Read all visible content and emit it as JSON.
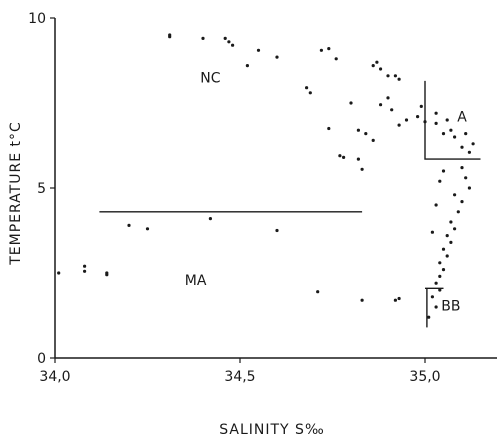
{
  "chart_data": {
    "type": "scatter",
    "xlabel": "SALINITY S‰",
    "ylabel": "TEMPERATURE t°C",
    "xlim": [
      34.0,
      35.15
    ],
    "ylim": [
      0,
      10
    ],
    "xticks": [
      {
        "value": 34.0,
        "label": "34,0"
      },
      {
        "value": 34.5,
        "label": "34,5"
      },
      {
        "value": 35.0,
        "label": "35,0"
      }
    ],
    "yticks": [
      {
        "value": 0,
        "label": "0"
      },
      {
        "value": 5,
        "label": "5"
      },
      {
        "value": 10,
        "label": "10"
      }
    ],
    "grid": false,
    "regions": [
      {
        "label": "NC",
        "x": 34.42,
        "y": 8.1
      },
      {
        "label": "MA",
        "x": 34.38,
        "y": 2.15
      },
      {
        "label": "A",
        "x": 35.1,
        "y": 6.95
      },
      {
        "label": "BB",
        "x": 35.07,
        "y": 1.4
      }
    ],
    "annotation_lines": [
      {
        "points": [
          [
            34.12,
            4.3
          ],
          [
            34.83,
            4.3
          ]
        ]
      },
      {
        "points": [
          [
            35.0,
            8.15
          ],
          [
            35.0,
            5.85
          ],
          [
            35.15,
            5.85
          ]
        ]
      },
      {
        "points": [
          [
            35.0,
            2.05
          ],
          [
            35.05,
            2.05
          ]
        ]
      },
      {
        "points": [
          [
            35.005,
            2.05
          ],
          [
            35.005,
            0.9
          ]
        ]
      }
    ],
    "points": [
      [
        34.01,
        2.5
      ],
      [
        34.08,
        2.55
      ],
      [
        34.08,
        2.7
      ],
      [
        34.14,
        2.5
      ],
      [
        34.14,
        2.45
      ],
      [
        34.2,
        3.9
      ],
      [
        34.25,
        3.8
      ],
      [
        34.42,
        4.1
      ],
      [
        34.6,
        3.75
      ],
      [
        34.31,
        9.5
      ],
      [
        34.31,
        9.45
      ],
      [
        34.4,
        9.4
      ],
      [
        34.46,
        9.4
      ],
      [
        34.47,
        9.3
      ],
      [
        34.48,
        9.2
      ],
      [
        34.52,
        8.6
      ],
      [
        34.55,
        9.05
      ],
      [
        34.6,
        8.85
      ],
      [
        34.68,
        7.95
      ],
      [
        34.69,
        7.8
      ],
      [
        34.72,
        9.05
      ],
      [
        34.74,
        9.1
      ],
      [
        34.76,
        8.8
      ],
      [
        34.74,
        6.75
      ],
      [
        34.77,
        5.95
      ],
      [
        34.78,
        5.9
      ],
      [
        34.82,
        5.85
      ],
      [
        34.83,
        5.55
      ],
      [
        34.8,
        7.5
      ],
      [
        34.82,
        6.7
      ],
      [
        34.84,
        6.6
      ],
      [
        34.86,
        6.4
      ],
      [
        34.86,
        8.6
      ],
      [
        34.87,
        8.7
      ],
      [
        34.88,
        8.5
      ],
      [
        34.88,
        7.45
      ],
      [
        34.9,
        7.65
      ],
      [
        34.9,
        8.3
      ],
      [
        34.91,
        7.3
      ],
      [
        34.92,
        8.3
      ],
      [
        34.93,
        8.2
      ],
      [
        34.93,
        6.85
      ],
      [
        34.95,
        7.0
      ],
      [
        34.98,
        7.1
      ],
      [
        34.99,
        7.4
      ],
      [
        35.0,
        6.95
      ],
      [
        35.03,
        7.2
      ],
      [
        34.71,
        1.95
      ],
      [
        34.83,
        1.7
      ],
      [
        34.92,
        1.7
      ],
      [
        34.93,
        1.75
      ],
      [
        35.03,
        6.9
      ],
      [
        35.05,
        6.6
      ],
      [
        35.06,
        7.0
      ],
      [
        35.07,
        6.7
      ],
      [
        35.08,
        6.5
      ],
      [
        35.1,
        6.2
      ],
      [
        35.11,
        6.6
      ],
      [
        35.12,
        6.05
      ],
      [
        35.13,
        6.3
      ],
      [
        35.04,
        5.2
      ],
      [
        35.05,
        5.5
      ],
      [
        35.1,
        5.6
      ],
      [
        35.11,
        5.3
      ],
      [
        35.12,
        5.0
      ],
      [
        35.08,
        4.8
      ],
      [
        35.1,
        4.6
      ],
      [
        35.09,
        4.3
      ],
      [
        35.07,
        4.0
      ],
      [
        35.08,
        3.8
      ],
      [
        35.06,
        3.6
      ],
      [
        35.07,
        3.4
      ],
      [
        35.05,
        3.2
      ],
      [
        35.06,
        3.0
      ],
      [
        35.04,
        2.8
      ],
      [
        35.05,
        2.6
      ],
      [
        35.04,
        2.4
      ],
      [
        35.03,
        2.2
      ],
      [
        35.04,
        2.0
      ],
      [
        35.02,
        1.8
      ],
      [
        35.03,
        1.5
      ],
      [
        35.01,
        1.2
      ],
      [
        35.03,
        4.5
      ],
      [
        35.02,
        3.7
      ]
    ]
  }
}
